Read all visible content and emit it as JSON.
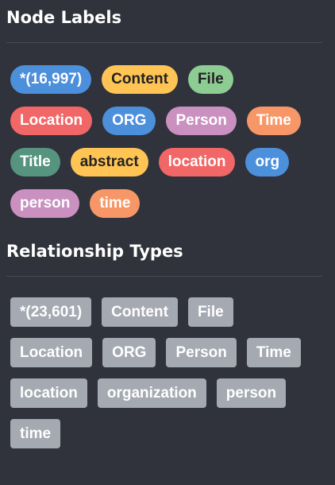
{
  "node_labels": {
    "title": "Node Labels",
    "items": [
      {
        "label": "*(16,997)",
        "color": "#4c8fdb",
        "text": "light"
      },
      {
        "label": "Content",
        "color": "#ffc454",
        "text": "dark"
      },
      {
        "label": "File",
        "color": "#8dcc93",
        "text": "dark"
      },
      {
        "label": "Location",
        "color": "#f16667",
        "text": "light"
      },
      {
        "label": "ORG",
        "color": "#4c8fdb",
        "text": "light"
      },
      {
        "label": "Person",
        "color": "#c990c0",
        "text": "light"
      },
      {
        "label": "Time",
        "color": "#f79767",
        "text": "light"
      },
      {
        "label": "Title",
        "color": "#57c7e3",
        "text": "light"
      },
      {
        "label": "abstract",
        "color": "#ffc454",
        "text": "dark"
      },
      {
        "label": "location",
        "color": "#f16667",
        "text": "light"
      },
      {
        "label": "org",
        "color": "#4c8fdb",
        "text": "light"
      },
      {
        "label": "person",
        "color": "#c990c0",
        "text": "light"
      },
      {
        "label": "time",
        "color": "#f79767",
        "text": "light"
      }
    ]
  },
  "relationship_types": {
    "title": "Relationship Types",
    "color": "#a5a9b1",
    "items": [
      "*(23,601)",
      "Content",
      "File",
      "Location",
      "ORG",
      "Person",
      "Time",
      "location",
      "organization",
      "person",
      "time"
    ]
  }
}
